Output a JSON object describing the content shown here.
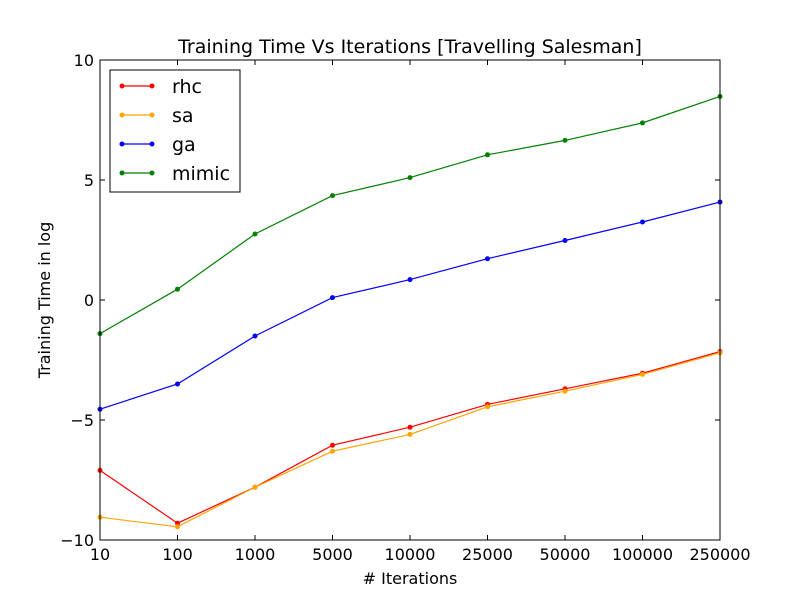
{
  "chart_data": {
    "type": "line",
    "title": "Training Time Vs Iterations [Travelling Salesman]",
    "xlabel": "# Iterations",
    "ylabel": "Training Time in log",
    "categories": [
      "10",
      "100",
      "1000",
      "5000",
      "10000",
      "25000",
      "50000",
      "100000",
      "250000"
    ],
    "ylim": [
      -10,
      10
    ],
    "yticks": [
      "10",
      "5",
      "0",
      "−5",
      "−10"
    ],
    "ytick_values": [
      10,
      5,
      0,
      -5,
      -10
    ],
    "grid": false,
    "legend_position": "top-left",
    "series": [
      {
        "name": "rhc",
        "color": "#ff0000",
        "values": [
          -7.1,
          -9.3,
          -7.8,
          -6.05,
          -5.3,
          -4.35,
          -3.7,
          -3.05,
          -2.15
        ]
      },
      {
        "name": "sa",
        "color": "#ffa500",
        "values": [
          -9.05,
          -9.45,
          -7.8,
          -6.3,
          -5.6,
          -4.45,
          -3.8,
          -3.1,
          -2.2
        ]
      },
      {
        "name": "ga",
        "color": "#0000ff",
        "values": [
          -4.55,
          -3.5,
          -1.5,
          0.1,
          0.85,
          1.72,
          2.48,
          3.25,
          4.08
        ]
      },
      {
        "name": "mimic",
        "color": "#008000",
        "values": [
          -1.4,
          0.45,
          2.75,
          4.35,
          5.1,
          6.05,
          6.65,
          7.38,
          8.48
        ]
      }
    ]
  }
}
